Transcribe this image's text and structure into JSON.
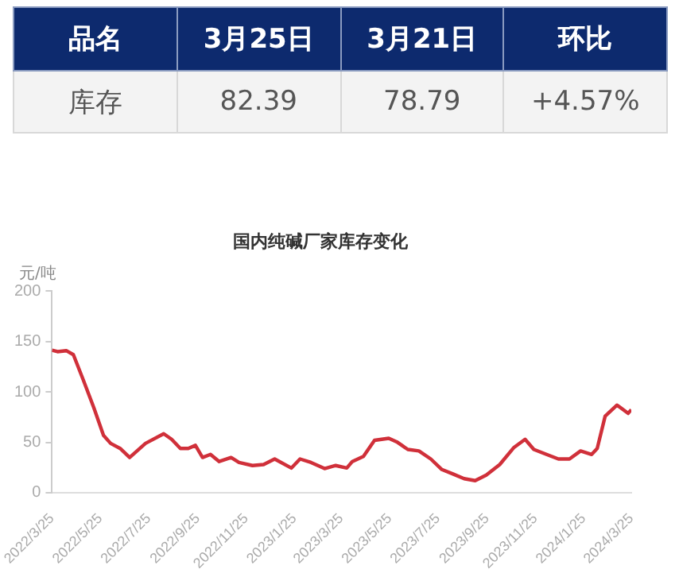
{
  "chart_data": [
    {
      "type": "other",
      "categories": [
        "品名",
        "3月25日",
        "3月21日",
        "环比"
      ],
      "cell_labels": [
        [
          "库存",
          "82.39",
          "78.79",
          "+4.57%"
        ]
      ]
    },
    {
      "type": "line",
      "title": "国内纯碱厂家库存变化",
      "ylabel": "元/吨",
      "x": [
        "2022-03-25",
        "2022-04-01",
        "2022-04-12",
        "2022-04-21",
        "2022-05-03",
        "2022-05-17",
        "2022-05-29",
        "2022-06-07",
        "2022-06-19",
        "2022-07-01",
        "2022-07-21",
        "2022-08-13",
        "2022-08-23",
        "2022-09-03",
        "2022-09-13",
        "2022-09-22",
        "2022-10-01",
        "2022-10-11",
        "2022-10-22",
        "2022-11-06",
        "2022-11-16",
        "2022-12-03",
        "2022-12-17",
        "2022-12-31",
        "2023-01-21",
        "2023-02-01",
        "2023-02-15",
        "2023-03-04",
        "2023-03-18",
        "2023-04-01",
        "2023-04-08",
        "2023-04-22",
        "2023-05-06",
        "2023-05-24",
        "2023-06-03",
        "2023-06-17",
        "2023-07-01",
        "2023-07-16",
        "2023-07-30",
        "2023-08-13",
        "2023-08-27",
        "2023-09-10",
        "2023-09-24",
        "2023-10-11",
        "2023-10-29",
        "2023-11-12",
        "2023-11-23",
        "2023-12-09",
        "2023-12-24",
        "2024-01-07",
        "2024-01-21",
        "2024-02-04",
        "2024-02-11",
        "2024-02-21",
        "2024-03-07",
        "2024-03-21",
        "2024-03-25"
      ],
      "series": [
        {
          "color": "#d0303a",
          "values": [
            141.5,
            140,
            141,
            137,
            113,
            84,
            57,
            49,
            44,
            35,
            49,
            58.5,
            53,
            44,
            44,
            47,
            35,
            38,
            31,
            35,
            30,
            27,
            28,
            33.5,
            24.5,
            33.5,
            30,
            24,
            27,
            24.5,
            31,
            36,
            52,
            54,
            50.5,
            43,
            41.5,
            33.5,
            23,
            18.6,
            14,
            12,
            17.5,
            28,
            45,
            53,
            43,
            38,
            33.5,
            33.5,
            41.5,
            38,
            44,
            76,
            87,
            78.79,
            82.39
          ]
        }
      ],
      "xlim": [
        "2022-03-25",
        "2024-03-25"
      ],
      "xticks": [
        {
          "value": "2022-03-25",
          "label": "2022/3/25"
        },
        {
          "value": "2022-05-25",
          "label": "2022/5/25"
        },
        {
          "value": "2022-07-25",
          "label": "2022/7/25"
        },
        {
          "value": "2022-09-25",
          "label": "2022/9/25"
        },
        {
          "value": "2022-11-25",
          "label": "2022/11/25"
        },
        {
          "value": "2023-01-25",
          "label": "2023/1/25"
        },
        {
          "value": "2023-03-25",
          "label": "2023/3/25"
        },
        {
          "value": "2023-05-25",
          "label": "2023/5/25"
        },
        {
          "value": "2023-07-25",
          "label": "2023/7/25"
        },
        {
          "value": "2023-09-25",
          "label": "2023/9/25"
        },
        {
          "value": "2023-11-25",
          "label": "2023/11/25"
        },
        {
          "value": "2024-01-25",
          "label": "2024/1/25"
        },
        {
          "value": "2024-03-25",
          "label": "2024/3/25"
        }
      ],
      "ylim": [
        0,
        200
      ],
      "yticks": [
        0,
        50,
        100,
        150,
        200
      ],
      "grid": false,
      "legend": false,
      "marker": "none",
      "line_style": "solid"
    }
  ]
}
